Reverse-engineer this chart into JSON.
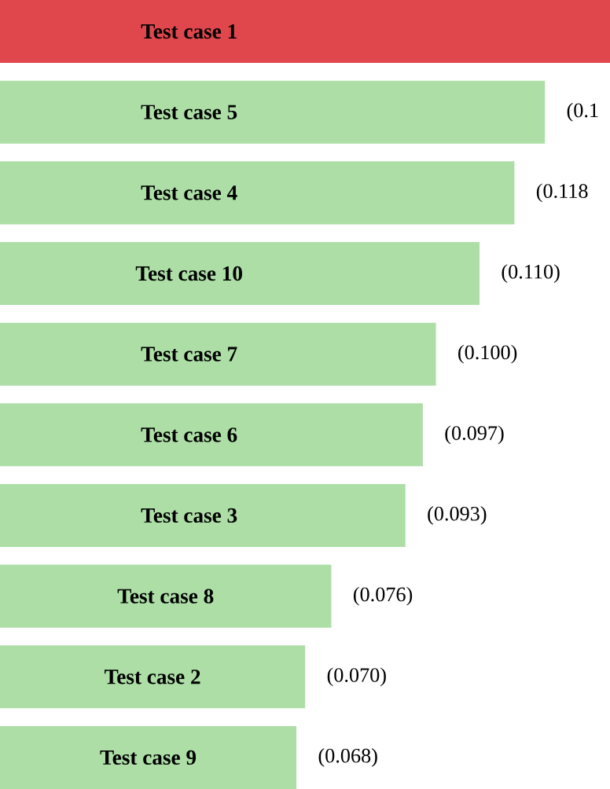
{
  "chart_data": {
    "type": "bar",
    "orientation": "horizontal",
    "categories": [
      "Test case 1",
      "Test case 5",
      "Test case 4",
      "Test case 10",
      "Test case 7",
      "Test case 6",
      "Test case 3",
      "Test case 8",
      "Test case 2",
      "Test case 9"
    ],
    "values": [
      0.14,
      0.125,
      0.118,
      0.11,
      0.1,
      0.097,
      0.093,
      0.076,
      0.07,
      0.068
    ],
    "colors": [
      "#e0474c",
      "#acdea6",
      "#acdea6",
      "#acdea6",
      "#acdea6",
      "#acdea6",
      "#acdea6",
      "#acdea6",
      "#acdea6",
      "#acdea6"
    ],
    "value_labels": [
      null,
      "(0.1",
      "(0.118",
      "(0.110)",
      "(0.100)",
      "(0.097)",
      "(0.093)",
      "(0.076)",
      "(0.070)",
      "(0.068)"
    ]
  }
}
